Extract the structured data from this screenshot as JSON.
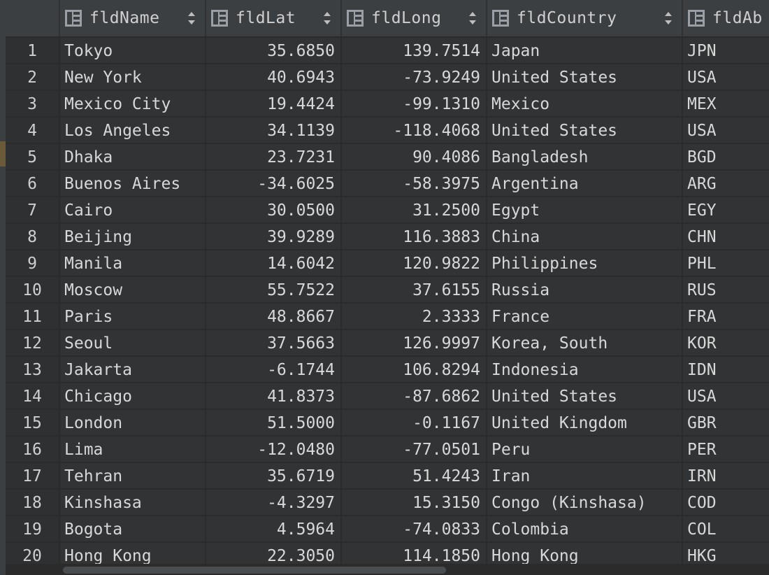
{
  "columns": [
    {
      "label": "fldName"
    },
    {
      "label": "fldLat"
    },
    {
      "label": "fldLong"
    },
    {
      "label": "fldCountry"
    },
    {
      "label": "fldAb"
    }
  ],
  "rows": [
    {
      "num": "1",
      "name": "Tokyo",
      "lat": "35.6850",
      "long": "139.7514",
      "country": "Japan",
      "ab": "JPN"
    },
    {
      "num": "2",
      "name": "New York",
      "lat": "40.6943",
      "long": "-73.9249",
      "country": "United States",
      "ab": "USA"
    },
    {
      "num": "3",
      "name": "Mexico City",
      "lat": "19.4424",
      "long": "-99.1310",
      "country": "Mexico",
      "ab": "MEX"
    },
    {
      "num": "4",
      "name": "Los Angeles",
      "lat": "34.1139",
      "long": "-118.4068",
      "country": "United States",
      "ab": "USA"
    },
    {
      "num": "5",
      "name": "Dhaka",
      "lat": "23.7231",
      "long": "90.4086",
      "country": "Bangladesh",
      "ab": "BGD"
    },
    {
      "num": "6",
      "name": "Buenos Aires",
      "lat": "-34.6025",
      "long": "-58.3975",
      "country": "Argentina",
      "ab": "ARG"
    },
    {
      "num": "7",
      "name": "Cairo",
      "lat": "30.0500",
      "long": "31.2500",
      "country": "Egypt",
      "ab": "EGY"
    },
    {
      "num": "8",
      "name": "Beijing",
      "lat": "39.9289",
      "long": "116.3883",
      "country": "China",
      "ab": "CHN"
    },
    {
      "num": "9",
      "name": "Manila",
      "lat": "14.6042",
      "long": "120.9822",
      "country": "Philippines",
      "ab": "PHL"
    },
    {
      "num": "10",
      "name": "Moscow",
      "lat": "55.7522",
      "long": "37.6155",
      "country": "Russia",
      "ab": "RUS"
    },
    {
      "num": "11",
      "name": "Paris",
      "lat": "48.8667",
      "long": "2.3333",
      "country": "France",
      "ab": "FRA"
    },
    {
      "num": "12",
      "name": "Seoul",
      "lat": "37.5663",
      "long": "126.9997",
      "country": "Korea, South",
      "ab": "KOR"
    },
    {
      "num": "13",
      "name": "Jakarta",
      "lat": "-6.1744",
      "long": "106.8294",
      "country": "Indonesia",
      "ab": "IDN"
    },
    {
      "num": "14",
      "name": "Chicago",
      "lat": "41.8373",
      "long": "-87.6862",
      "country": "United States",
      "ab": "USA"
    },
    {
      "num": "15",
      "name": "London",
      "lat": "51.5000",
      "long": "-0.1167",
      "country": "United Kingdom",
      "ab": "GBR"
    },
    {
      "num": "16",
      "name": "Lima",
      "lat": "-12.0480",
      "long": "-77.0501",
      "country": "Peru",
      "ab": "PER"
    },
    {
      "num": "17",
      "name": "Tehran",
      "lat": "35.6719",
      "long": "51.4243",
      "country": "Iran",
      "ab": "IRN"
    },
    {
      "num": "18",
      "name": "Kinshasa",
      "lat": "-4.3297",
      "long": "15.3150",
      "country": "Congo (Kinshasa)",
      "ab": "COD"
    },
    {
      "num": "19",
      "name": "Bogota",
      "lat": "4.5964",
      "long": "-74.0833",
      "country": "Colombia",
      "ab": "COL"
    },
    {
      "num": "20",
      "name": "Hong Kong",
      "lat": "22.3050",
      "long": "114.1850",
      "country": "Hong Kong",
      "ab": "HKG"
    }
  ]
}
